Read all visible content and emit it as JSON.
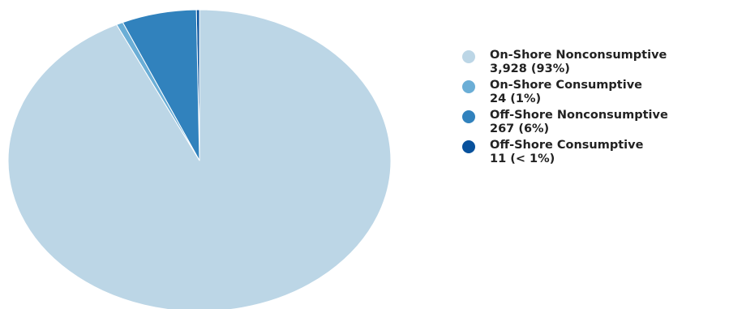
{
  "chart_data": {
    "type": "pie",
    "title": "",
    "legend_position": "right",
    "slices": [
      {
        "label": "On-Shore Nonconsumptive",
        "value": 3928,
        "value_text": "3,928 (93%)",
        "color": "#bcd6e6"
      },
      {
        "label": "On-Shore Consumptive",
        "value": 24,
        "value_text": "24 (1%)",
        "color": "#6baed6"
      },
      {
        "label": "Off-Shore Nonconsumptive",
        "value": 267,
        "value_text": "267 (6%)",
        "color": "#3182bd"
      },
      {
        "label": "Off-Shore Consumptive",
        "value": 11,
        "value_text": "11 (< 1%)",
        "color": "#08519c"
      }
    ]
  }
}
